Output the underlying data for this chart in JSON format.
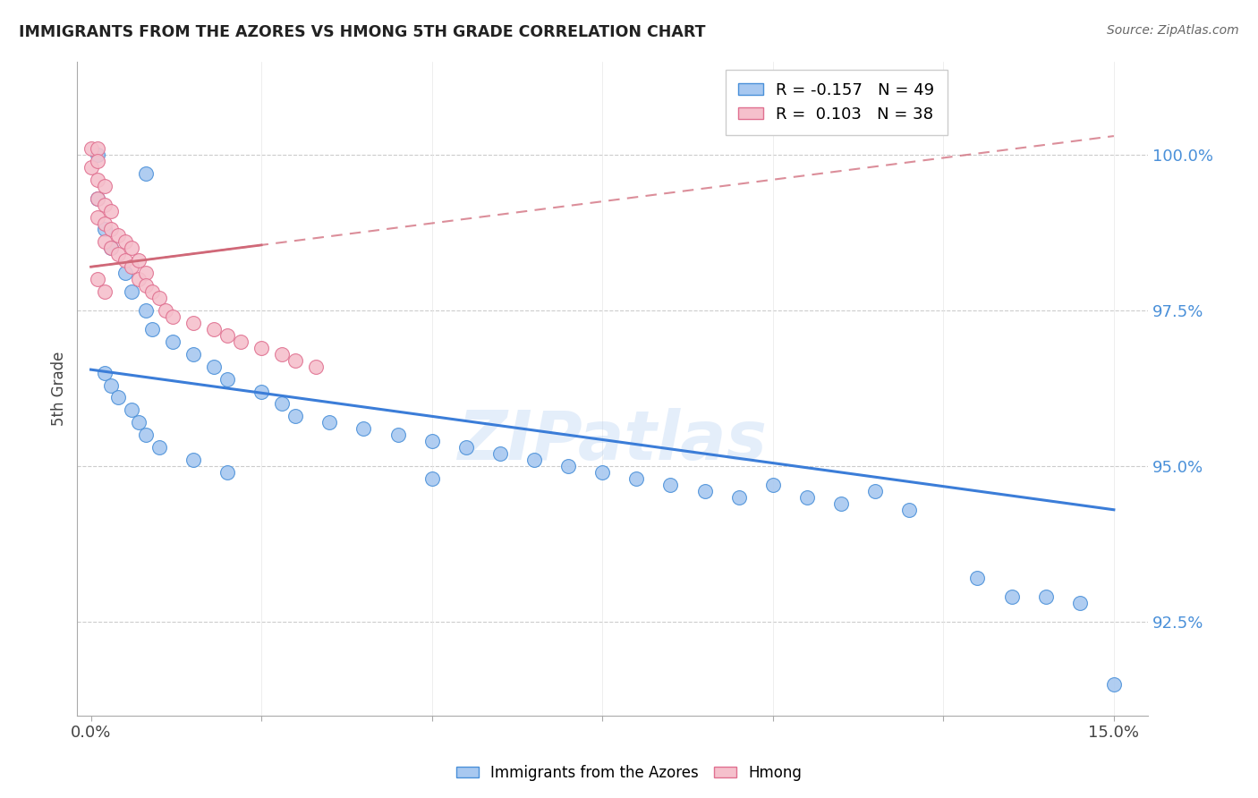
{
  "title": "IMMIGRANTS FROM THE AZORES VS HMONG 5TH GRADE CORRELATION CHART",
  "source": "Source: ZipAtlas.com",
  "ylabel": "5th Grade",
  "ylim": [
    91.0,
    101.5
  ],
  "xlim": [
    -0.002,
    0.155
  ],
  "yticks": [
    92.5,
    95.0,
    97.5,
    100.0
  ],
  "xtick_vals": [
    0.0,
    0.025,
    0.05,
    0.075,
    0.1,
    0.125,
    0.15
  ],
  "xtick_labels": [
    "0.0%",
    "",
    "",
    "",
    "",
    "",
    "15.0%"
  ],
  "legend_blue_r": "-0.157",
  "legend_blue_n": "49",
  "legend_pink_r": "0.103",
  "legend_pink_n": "38",
  "legend_label_blue": "Immigrants from the Azores",
  "legend_label_pink": "Hmong",
  "blue_face_color": "#a8c8f0",
  "blue_edge_color": "#4a90d9",
  "pink_face_color": "#f5c0cc",
  "pink_edge_color": "#e07090",
  "blue_line_color": "#3b7dd8",
  "pink_line_color": "#d06878",
  "watermark": "ZIPatlas",
  "blue_trendline": [
    0.0,
    96.55,
    0.15,
    94.3
  ],
  "pink_solid_line": [
    0.0,
    98.2,
    0.025,
    98.55
  ],
  "pink_dashed_line": [
    0.0,
    98.2,
    0.15,
    100.3
  ],
  "blue_x": [
    0.001,
    0.008,
    0.001,
    0.002,
    0.003,
    0.005,
    0.006,
    0.008,
    0.009,
    0.012,
    0.015,
    0.018,
    0.02,
    0.025,
    0.028,
    0.03,
    0.035,
    0.04,
    0.045,
    0.05,
    0.055,
    0.06,
    0.065,
    0.07,
    0.075,
    0.08,
    0.085,
    0.09,
    0.095,
    0.1,
    0.105,
    0.11,
    0.115,
    0.12,
    0.13,
    0.135,
    0.14,
    0.145,
    0.15,
    0.002,
    0.003,
    0.004,
    0.006,
    0.007,
    0.008,
    0.01,
    0.015,
    0.02,
    0.05
  ],
  "blue_y": [
    100.0,
    99.7,
    99.3,
    98.8,
    98.5,
    98.1,
    97.8,
    97.5,
    97.2,
    97.0,
    96.8,
    96.6,
    96.4,
    96.2,
    96.0,
    95.8,
    95.7,
    95.6,
    95.5,
    95.4,
    95.3,
    95.2,
    95.1,
    95.0,
    94.9,
    94.8,
    94.7,
    94.6,
    94.5,
    94.7,
    94.5,
    94.4,
    94.6,
    94.3,
    93.2,
    92.9,
    92.9,
    92.8,
    91.5,
    96.5,
    96.3,
    96.1,
    95.9,
    95.7,
    95.5,
    95.3,
    95.1,
    94.9,
    94.8
  ],
  "pink_x": [
    0.0,
    0.0,
    0.001,
    0.001,
    0.001,
    0.001,
    0.001,
    0.002,
    0.002,
    0.002,
    0.002,
    0.003,
    0.003,
    0.003,
    0.004,
    0.004,
    0.005,
    0.005,
    0.006,
    0.006,
    0.007,
    0.007,
    0.008,
    0.008,
    0.009,
    0.01,
    0.011,
    0.012,
    0.015,
    0.018,
    0.02,
    0.022,
    0.025,
    0.028,
    0.03,
    0.033,
    0.001,
    0.002
  ],
  "pink_y": [
    100.1,
    99.8,
    100.1,
    99.9,
    99.6,
    99.3,
    99.0,
    99.5,
    99.2,
    98.9,
    98.6,
    99.1,
    98.8,
    98.5,
    98.7,
    98.4,
    98.6,
    98.3,
    98.5,
    98.2,
    98.3,
    98.0,
    98.1,
    97.9,
    97.8,
    97.7,
    97.5,
    97.4,
    97.3,
    97.2,
    97.1,
    97.0,
    96.9,
    96.8,
    96.7,
    96.6,
    98.0,
    97.8
  ]
}
